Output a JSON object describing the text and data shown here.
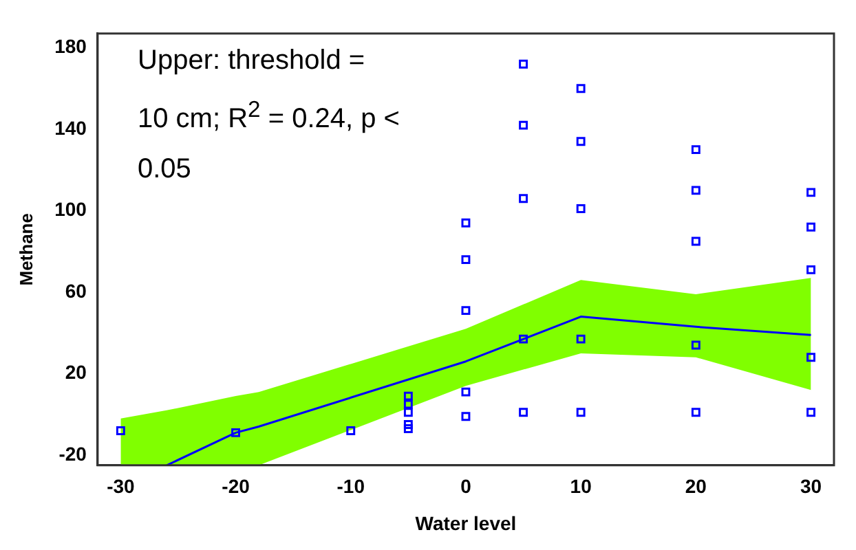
{
  "chart_data": {
    "type": "scatter",
    "xlabel": "Water level",
    "ylabel": "Methane",
    "annotations": [
      "Upper: threshold = 10 cm; R$^{2}$ = 0.24, p < 0.05"
    ],
    "xlim": [
      -32,
      32
    ],
    "xticks": [
      -30,
      -20,
      -10,
      0,
      10,
      20,
      30
    ],
    "ylim": [
      -25,
      187
    ],
    "yticks": [
      -20,
      20,
      60,
      100,
      140,
      180
    ],
    "grid": false,
    "legend": false,
    "series": [
      {
        "marker": "square",
        "color": "#0000ff",
        "x": [
          -30,
          -20,
          -10,
          -5,
          -5,
          -5,
          -5,
          -5,
          0,
          0,
          0,
          0,
          0,
          5,
          5,
          5,
          5,
          5,
          10,
          10,
          10,
          10,
          10,
          20,
          20,
          20,
          20,
          20,
          30,
          30,
          30,
          30,
          30
        ],
        "values": [
          -8,
          -9,
          -8,
          9,
          5,
          1,
          -5,
          -7,
          94,
          76,
          51,
          11,
          -1,
          172,
          142,
          106,
          37,
          1,
          160,
          134,
          101,
          37,
          1,
          130,
          110,
          85,
          34,
          1,
          109,
          92,
          71,
          28,
          1
        ]
      },
      {
        "type": "line",
        "marker": "none",
        "color": "#0000ff",
        "x": [
          -30,
          -26,
          -20,
          -18,
          0,
          10,
          20,
          30
        ],
        "values": [
          null,
          -25,
          -9,
          -6,
          26,
          48,
          43,
          39
        ],
        "lower": [
          -25,
          -25,
          -25,
          -25,
          14,
          30,
          28,
          12
        ],
        "upper": [
          -2,
          2,
          9,
          11,
          42,
          66,
          59,
          67
        ]
      }
    ]
  }
}
